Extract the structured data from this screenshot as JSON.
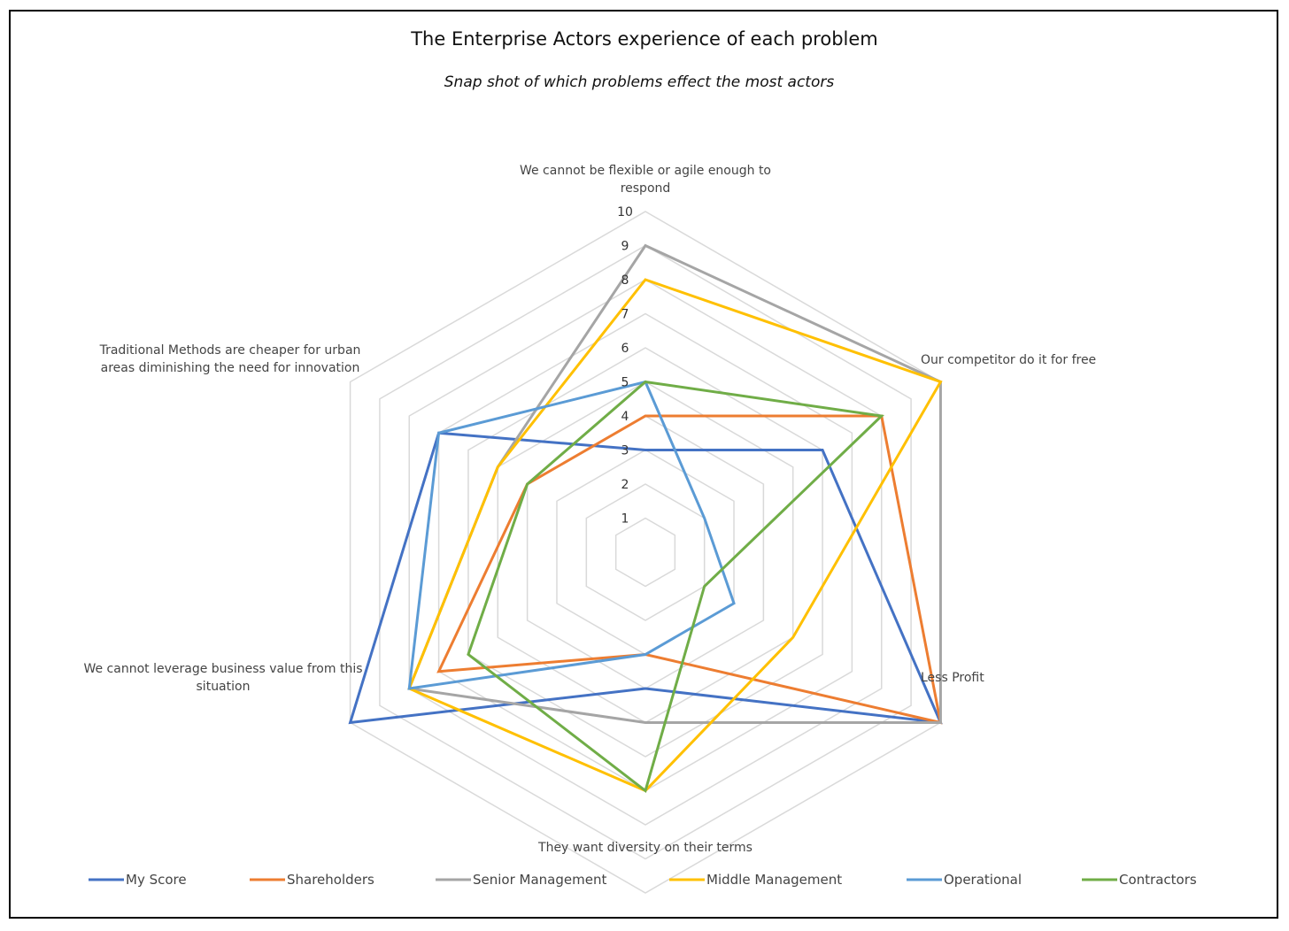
{
  "chart_data": {
    "type": "radar",
    "title": "The Enterprise Actors experience of each problem",
    "subtitle": "Snap shot of which problems effect the most actors",
    "axis_range": [
      0,
      10
    ],
    "ticks": [
      "1",
      "2",
      "3",
      "4",
      "5",
      "6",
      "7",
      "8",
      "9",
      "10"
    ],
    "grid": true,
    "legend_position": "bottom",
    "categories": [
      [
        "We cannot be flexible or agile enough to",
        "respond"
      ],
      [
        "Our competitor do it for free"
      ],
      [
        "Less Profit"
      ],
      [
        "They want diversity on their terms"
      ],
      [
        "We cannot leverage business value from this",
        "situation"
      ],
      [
        "Traditional Methods are cheaper for urban",
        "areas diminishing the need for innovation"
      ]
    ],
    "series": [
      {
        "name": "My Score",
        "color": "#4472C4",
        "values": [
          3,
          6,
          10,
          4,
          10,
          7
        ]
      },
      {
        "name": "Shareholders",
        "color": "#ED7D31",
        "values": [
          4,
          8,
          10,
          3,
          7,
          4
        ]
      },
      {
        "name": "Senior Management",
        "color": "#A5A5A5",
        "values": [
          9,
          10,
          10,
          5,
          8,
          5
        ]
      },
      {
        "name": "Middle Management",
        "color": "#FFC000",
        "values": [
          8,
          10,
          5,
          7,
          8,
          5
        ]
      },
      {
        "name": "Operational",
        "color": "#5B9BD5",
        "values": [
          5,
          2,
          3,
          3,
          8,
          7
        ]
      },
      {
        "name": "Contractors",
        "color": "#70AD47",
        "values": [
          5,
          8,
          2,
          7,
          6,
          4
        ]
      }
    ]
  }
}
